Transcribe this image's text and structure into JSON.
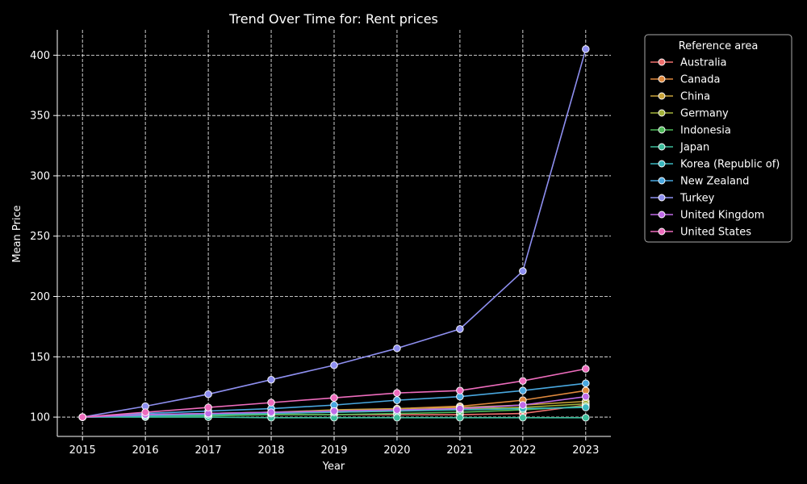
{
  "chart_data": {
    "type": "line",
    "title": "Trend Over Time for: Rent prices",
    "xlabel": "Year",
    "ylabel": "Mean Price",
    "xlim": [
      2014.6,
      2023.4
    ],
    "ylim": [
      84,
      421
    ],
    "x": [
      2015,
      2016,
      2017,
      2018,
      2019,
      2020,
      2021,
      2022,
      2023
    ],
    "yticks": [
      100,
      150,
      200,
      250,
      300,
      350,
      400
    ],
    "grid": true,
    "legend": {
      "title": "Reference area",
      "placement": "outside-right"
    },
    "series": [
      {
        "name": "Australia",
        "color": "#f0706e",
        "values": [
          100,
          102,
          102,
          102,
          102,
          102,
          102,
          103,
          110
        ]
      },
      {
        "name": "Canada",
        "color": "#e0893d",
        "values": [
          100,
          102,
          103,
          104,
          105,
          107,
          109,
          114,
          122
        ]
      },
      {
        "name": "China",
        "color": "#c9a43a",
        "values": [
          100,
          101,
          103,
          104,
          106,
          107,
          108,
          110,
          113
        ]
      },
      {
        "name": "Germany",
        "color": "#a3b23a",
        "values": [
          100,
          101,
          102,
          103,
          104,
          105,
          107,
          108,
          111
        ]
      },
      {
        "name": "Indonesia",
        "color": "#4fbb5a",
        "values": [
          100,
          101,
          101,
          102,
          102,
          103,
          104,
          106,
          109
        ]
      },
      {
        "name": "Japan",
        "color": "#3dbd9b",
        "values": [
          100,
          100,
          100,
          99.5,
          99.5,
          99.5,
          99.5,
          99.5,
          99.5
        ]
      },
      {
        "name": "Korea (Republic of)",
        "color": "#3ab8bf",
        "values": [
          100,
          101,
          102,
          103,
          104,
          105,
          106,
          107,
          108
        ]
      },
      {
        "name": "New Zealand",
        "color": "#49a8e0",
        "values": [
          100,
          103,
          105,
          107,
          110,
          114,
          117,
          122,
          128
        ]
      },
      {
        "name": "Turkey",
        "color": "#8e8ff0",
        "values": [
          100,
          109,
          119,
          131,
          143,
          157,
          173,
          221,
          405
        ]
      },
      {
        "name": "United Kingdom",
        "color": "#c06ae8",
        "values": [
          100,
          102,
          103,
          104,
          105,
          106,
          107,
          110,
          117
        ]
      },
      {
        "name": "United States",
        "color": "#ee6cbd",
        "values": [
          100,
          104,
          108,
          112,
          116,
          120,
          122,
          130,
          140
        ]
      }
    ]
  }
}
